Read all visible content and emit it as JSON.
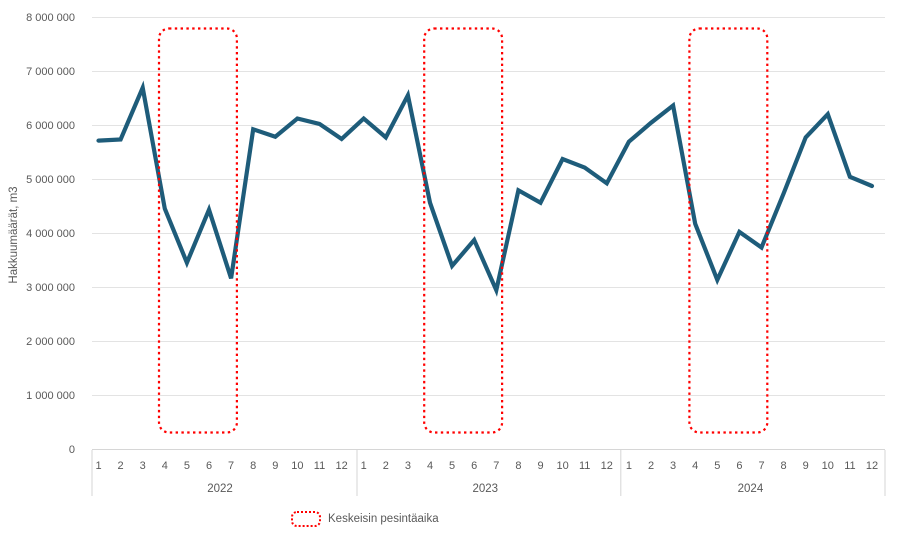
{
  "chart_data": {
    "type": "line",
    "title": "",
    "ylabel": "Hakkuumäärät, m3",
    "xlabel": "",
    "ylim": [
      0,
      8000000
    ],
    "grid": true,
    "legend_position": "bottom",
    "y_tick_labels": [
      "0",
      "1 000 000",
      "2 000 000",
      "3 000 000",
      "4 000 000",
      "5 000 000",
      "6 000 000",
      "7 000 000",
      "8 000 000"
    ],
    "month_labels": [
      "1",
      "2",
      "3",
      "4",
      "5",
      "6",
      "7",
      "8",
      "9",
      "10",
      "11",
      "12"
    ],
    "years": [
      "2022",
      "2023",
      "2024"
    ],
    "series": [
      {
        "name": "Hakkuumäärät, m3",
        "color": "#1E5C7A",
        "values": [
          5720000,
          5740000,
          6700000,
          4460000,
          3460000,
          4440000,
          3170000,
          5930000,
          5790000,
          6130000,
          6030000,
          5750000,
          6130000,
          5780000,
          6560000,
          4570000,
          3400000,
          3880000,
          2950000,
          4800000,
          4570000,
          5380000,
          5220000,
          4930000,
          5700000,
          6050000,
          6370000,
          4180000,
          3140000,
          4030000,
          3740000,
          4740000,
          5780000,
          6210000,
          5050000,
          4880000
        ]
      }
    ],
    "highlight_regions": [
      {
        "year": "2022",
        "start_month": 4,
        "end_month": 7
      },
      {
        "year": "2023",
        "start_month": 4,
        "end_month": 7
      },
      {
        "year": "2024",
        "start_month": 4,
        "end_month": 7
      }
    ],
    "legend": {
      "label": "Keskeisin pesintäaika"
    }
  },
  "colors": {
    "line": "#1E5C7A",
    "highlight": "#FF0000",
    "text": "#595959",
    "gridline": "#E3E3E3",
    "axis": "#D6D6D6"
  }
}
